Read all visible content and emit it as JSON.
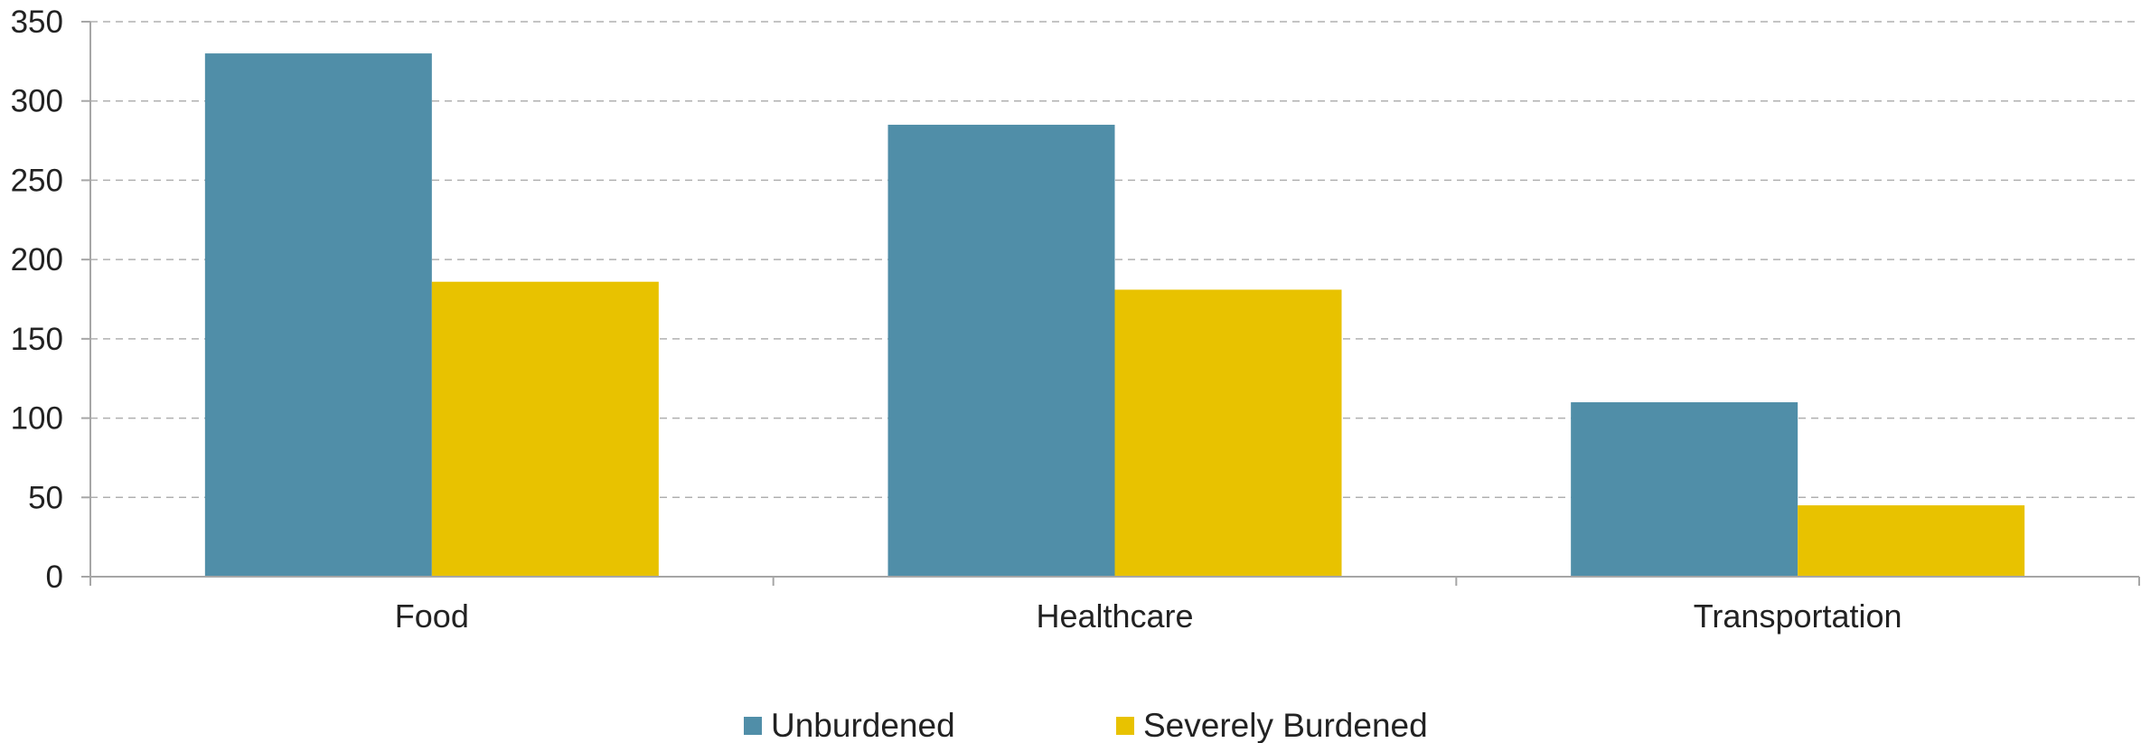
{
  "chart_data": {
    "type": "bar",
    "categories": [
      "Food",
      "Healthcare",
      "Transportation"
    ],
    "series": [
      {
        "name": "Unburdened",
        "color": "#508ea8",
        "values": [
          330,
          285,
          110
        ]
      },
      {
        "name": "Severely Burdened",
        "color": "#e8c200",
        "values": [
          186,
          181,
          45
        ]
      }
    ],
    "title": "",
    "xlabel": "",
    "ylabel": "",
    "ylim": [
      0,
      350
    ],
    "yticks": [
      "0",
      "50",
      "100",
      "150",
      "200",
      "250",
      "300",
      "350"
    ],
    "grid": true,
    "legend_position": "bottom"
  }
}
